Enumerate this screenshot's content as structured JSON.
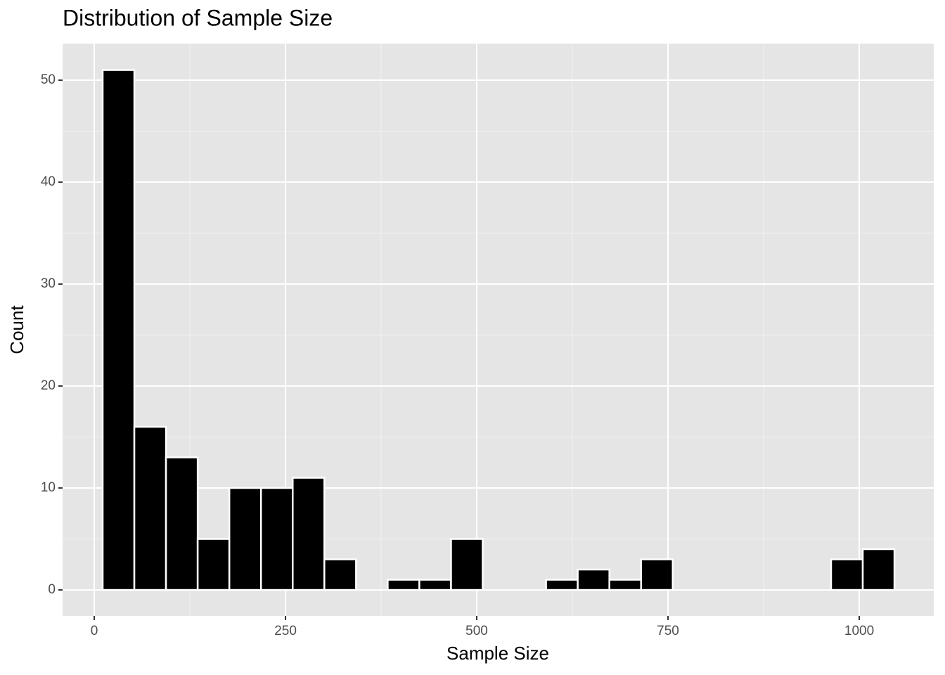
{
  "chart_data": {
    "type": "histogram",
    "title": "Distribution of Sample Size",
    "x_label": "Sample Size",
    "y_label": "Count",
    "bins": [
      11,
      52.4,
      93.8,
      135.2,
      176.6,
      218,
      259.4,
      300.8,
      342.2,
      383.6,
      425,
      466.4,
      507.8,
      549.2,
      590.6,
      632,
      673.4,
      714.8,
      756.2,
      797.6,
      839,
      880.4,
      921.8,
      963.2,
      1004.6,
      1046
    ],
    "values": [
      51,
      16,
      13,
      5,
      10,
      10,
      11,
      3,
      0,
      1,
      1,
      5,
      0,
      0,
      1,
      2,
      1,
      3,
      0,
      0,
      0,
      0,
      0,
      3,
      4
    ],
    "color": "#000000",
    "edge_color": "#ffffff",
    "xlim": [
      -41.4,
      1097.4
    ],
    "ylim": [
      -2.55,
      53.59
    ],
    "xticks": [
      0,
      250,
      500,
      750,
      1000
    ],
    "yticks": [
      0,
      10,
      20,
      30,
      40,
      50
    ],
    "grid": true
  }
}
